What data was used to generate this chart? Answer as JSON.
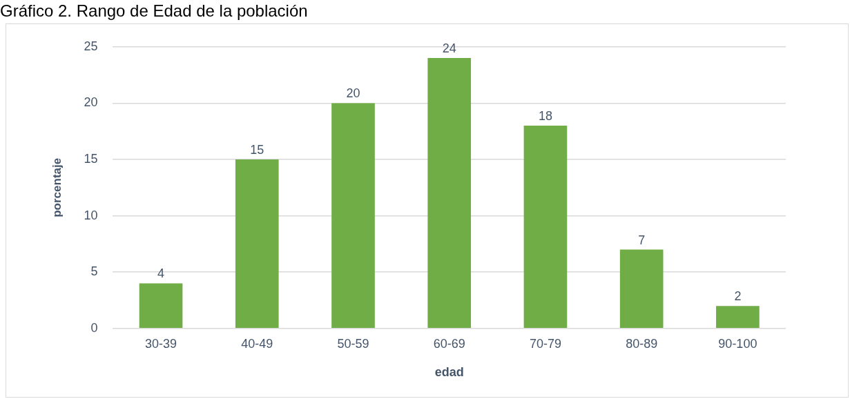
{
  "chart_data": {
    "type": "bar",
    "title": "Gráfico 2. Rango de Edad de la población",
    "xlabel": "edad",
    "ylabel": "porcentaje",
    "categories": [
      "30-39",
      "40-49",
      "50-59",
      "60-69",
      "70-79",
      "80-89",
      "90-100"
    ],
    "values": [
      4,
      15,
      20,
      24,
      18,
      7,
      2
    ],
    "color": "#70ad47",
    "ylim": [
      0,
      25
    ],
    "yticks": [
      0,
      5,
      10,
      15,
      20,
      25
    ],
    "grid": "y",
    "data_labels": true
  }
}
